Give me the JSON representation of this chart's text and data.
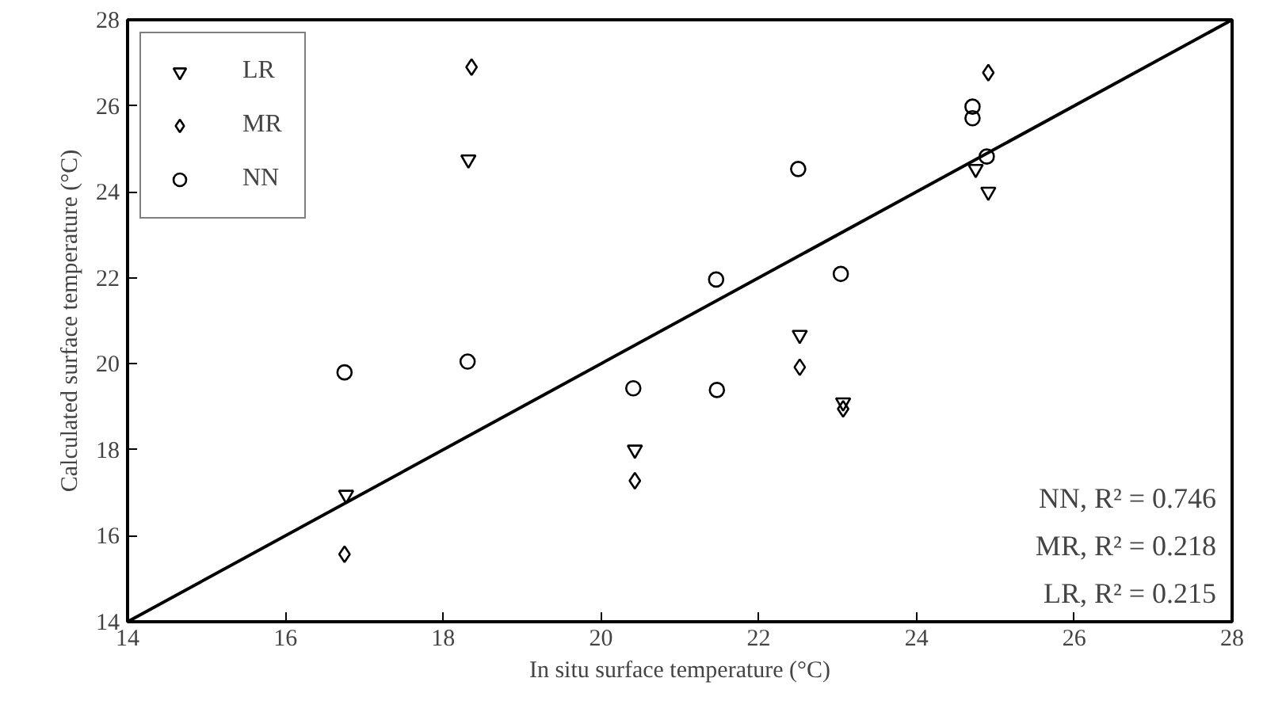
{
  "chart_data": {
    "type": "scatter",
    "xlabel": "In situ surface temperature (°C)",
    "ylabel": "Calculated surface temperature (°C)",
    "xlim": [
      14,
      28
    ],
    "ylim": [
      14,
      28
    ],
    "xticks": [
      14,
      16,
      18,
      20,
      22,
      24,
      26,
      28
    ],
    "yticks": [
      14,
      16,
      18,
      20,
      22,
      24,
      26,
      28
    ],
    "grid": false,
    "legend": "top left",
    "series": [
      {
        "name": "LR",
        "color": "#000000",
        "marker": "triangle",
        "x": [
          16.77,
          18.32,
          20.43,
          22.52,
          23.07,
          24.75,
          24.91
        ],
        "values": [
          16.95,
          24.75,
          18.0,
          20.67,
          19.1,
          24.53,
          24.0
        ]
      },
      {
        "name": "MR",
        "color": "#000000",
        "marker": "diamond",
        "x": [
          16.75,
          18.36,
          20.43,
          22.52,
          23.07,
          24.91
        ],
        "values": [
          15.57,
          26.9,
          17.28,
          19.92,
          18.95,
          26.77
        ]
      },
      {
        "name": "NN",
        "color": "#000000",
        "marker": "circle",
        "x": [
          16.75,
          18.31,
          20.41,
          21.46,
          21.47,
          22.5,
          23.04,
          24.71,
          24.71,
          24.89
        ],
        "values": [
          19.8,
          20.05,
          19.43,
          21.96,
          19.39,
          24.53,
          22.09,
          25.98,
          25.71,
          24.82
        ]
      },
      {
        "type": "line",
        "color": "#000000",
        "x": [
          14,
          28
        ],
        "values": [
          14,
          28
        ]
      }
    ],
    "annotations": [
      "NN, R² = 0.746",
      "MR, R² = 0.218",
      "LR, R² = 0.215"
    ]
  }
}
